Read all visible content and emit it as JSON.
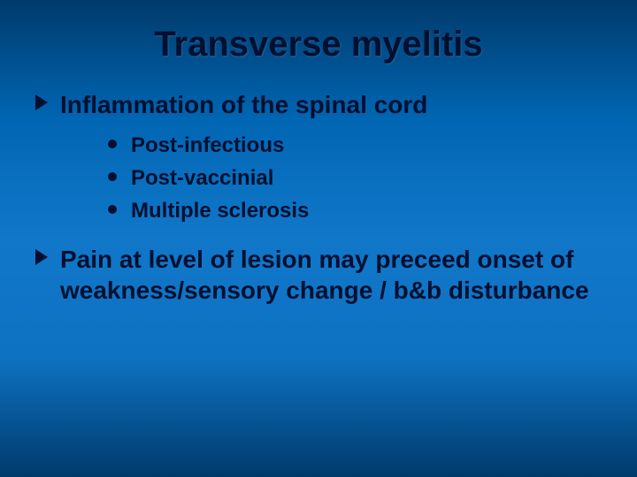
{
  "slide": {
    "title": "Transverse myelitis",
    "title_fontsize": 40,
    "title_color": "#001030",
    "background_gradient": [
      "#003a6b",
      "#0066b3",
      "#1177c9",
      "#0e72c2",
      "#003a6b"
    ],
    "text_color": "#001030",
    "font_family": "Arial",
    "bullets": [
      {
        "text": "Inflammation of the spinal cord",
        "marker": "arrow",
        "fontsize": 28,
        "sub": [
          {
            "text": "Post-infectious",
            "marker": "disc",
            "fontsize": 24
          },
          {
            "text": "Post-vaccinial",
            "marker": "disc",
            "fontsize": 24
          },
          {
            "text": "Multiple sclerosis",
            "marker": "disc",
            "fontsize": 24
          }
        ]
      },
      {
        "text": "Pain at level of lesion may preceed onset of weakness/sensory change / b&b disturbance",
        "marker": "arrow",
        "fontsize": 28,
        "sub": []
      }
    ]
  }
}
